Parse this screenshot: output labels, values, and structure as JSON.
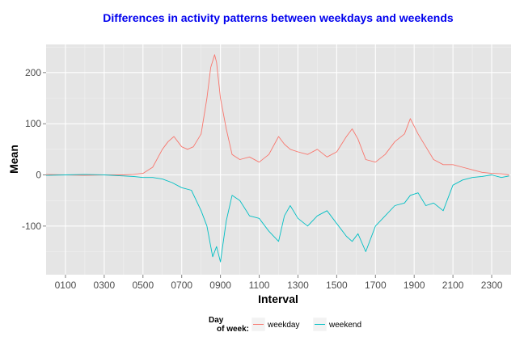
{
  "chart_data": {
    "type": "line",
    "title": "Differences in activity patterns between weekdays and weekends",
    "xlabel": "Interval",
    "ylabel": "Mean",
    "xlim": [
      0,
      2400
    ],
    "ylim": [
      -195,
      255
    ],
    "x_ticks": [
      100,
      300,
      500,
      700,
      900,
      1100,
      1300,
      1500,
      1700,
      1900,
      2100,
      2300
    ],
    "x_tick_labels": [
      "0100",
      "0300",
      "0500",
      "0700",
      "0900",
      "1100",
      "1300",
      "1500",
      "1700",
      "1900",
      "2100",
      "2300"
    ],
    "y_ticks": [
      -100,
      0,
      100,
      200
    ],
    "y_tick_labels": [
      "-100",
      "0",
      "100",
      "200"
    ],
    "grid": true,
    "legend": {
      "title_line1": "Day",
      "title_line2": "of week:",
      "position": "bottom"
    },
    "series": [
      {
        "name": "weekday",
        "color": "#f8766d",
        "points": [
          [
            0,
            1
          ],
          [
            100,
            0
          ],
          [
            200,
            -1
          ],
          [
            300,
            0
          ],
          [
            400,
            0
          ],
          [
            450,
            1
          ],
          [
            500,
            3
          ],
          [
            550,
            15
          ],
          [
            600,
            50
          ],
          [
            630,
            65
          ],
          [
            660,
            75
          ],
          [
            700,
            55
          ],
          [
            730,
            50
          ],
          [
            760,
            55
          ],
          [
            800,
            80
          ],
          [
            830,
            150
          ],
          [
            850,
            210
          ],
          [
            870,
            235
          ],
          [
            880,
            220
          ],
          [
            900,
            150
          ],
          [
            930,
            90
          ],
          [
            960,
            40
          ],
          [
            1000,
            30
          ],
          [
            1050,
            35
          ],
          [
            1100,
            25
          ],
          [
            1150,
            40
          ],
          [
            1200,
            75
          ],
          [
            1230,
            60
          ],
          [
            1260,
            50
          ],
          [
            1300,
            45
          ],
          [
            1350,
            40
          ],
          [
            1400,
            50
          ],
          [
            1450,
            35
          ],
          [
            1500,
            45
          ],
          [
            1550,
            75
          ],
          [
            1580,
            90
          ],
          [
            1610,
            70
          ],
          [
            1650,
            30
          ],
          [
            1700,
            25
          ],
          [
            1750,
            40
          ],
          [
            1800,
            65
          ],
          [
            1850,
            80
          ],
          [
            1880,
            110
          ],
          [
            1920,
            80
          ],
          [
            1960,
            55
          ],
          [
            2000,
            30
          ],
          [
            2050,
            20
          ],
          [
            2100,
            20
          ],
          [
            2150,
            15
          ],
          [
            2200,
            10
          ],
          [
            2250,
            5
          ],
          [
            2300,
            3
          ],
          [
            2350,
            2
          ],
          [
            2390,
            0
          ]
        ]
      },
      {
        "name": "weekend",
        "color": "#00bfc4",
        "points": [
          [
            0,
            -1
          ],
          [
            100,
            0
          ],
          [
            200,
            1
          ],
          [
            300,
            0
          ],
          [
            400,
            -2
          ],
          [
            450,
            -3
          ],
          [
            500,
            -5
          ],
          [
            550,
            -5
          ],
          [
            600,
            -8
          ],
          [
            650,
            -15
          ],
          [
            700,
            -25
          ],
          [
            750,
            -30
          ],
          [
            800,
            -70
          ],
          [
            830,
            -100
          ],
          [
            860,
            -160
          ],
          [
            880,
            -140
          ],
          [
            900,
            -170
          ],
          [
            930,
            -90
          ],
          [
            960,
            -40
          ],
          [
            1000,
            -50
          ],
          [
            1050,
            -80
          ],
          [
            1100,
            -85
          ],
          [
            1150,
            -110
          ],
          [
            1200,
            -130
          ],
          [
            1230,
            -80
          ],
          [
            1260,
            -60
          ],
          [
            1300,
            -85
          ],
          [
            1350,
            -100
          ],
          [
            1400,
            -80
          ],
          [
            1450,
            -70
          ],
          [
            1500,
            -95
          ],
          [
            1550,
            -120
          ],
          [
            1580,
            -130
          ],
          [
            1610,
            -115
          ],
          [
            1650,
            -150
          ],
          [
            1700,
            -100
          ],
          [
            1750,
            -80
          ],
          [
            1800,
            -60
          ],
          [
            1850,
            -55
          ],
          [
            1880,
            -40
          ],
          [
            1920,
            -35
          ],
          [
            1960,
            -60
          ],
          [
            2000,
            -55
          ],
          [
            2050,
            -70
          ],
          [
            2100,
            -20
          ],
          [
            2150,
            -10
          ],
          [
            2200,
            -5
          ],
          [
            2250,
            -3
          ],
          [
            2300,
            0
          ],
          [
            2350,
            -5
          ],
          [
            2390,
            -2
          ]
        ]
      }
    ]
  }
}
